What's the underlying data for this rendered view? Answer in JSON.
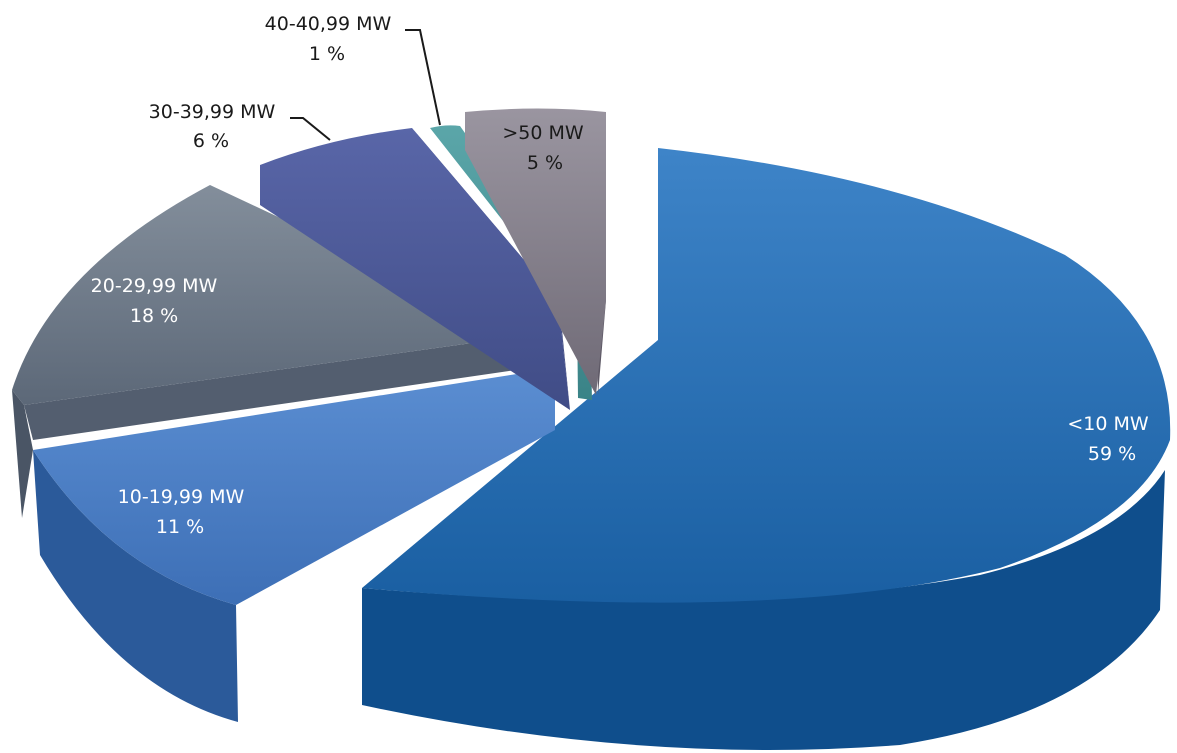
{
  "chart_data": {
    "type": "pie",
    "title": "",
    "slices": [
      {
        "label": "<10 MW",
        "value": 59,
        "percent_label": "59 %",
        "color": "#1F65A8"
      },
      {
        "label": "10-19,99 MW",
        "value": 11,
        "percent_label": "11 %",
        "color": "#3E72B8"
      },
      {
        "label": "20-29,99 MW",
        "value": 18,
        "percent_label": "18 %",
        "color": "#5D6B7E"
      },
      {
        "label": "30-39,99 MW",
        "value": 6,
        "percent_label": "6 %",
        "color": "#45528F"
      },
      {
        "label": "40-40,99 MW",
        "value": 1,
        "percent_label": "1 %",
        "color": "#3F8A8E"
      },
      {
        "label": ">50 MW",
        "value": 5,
        "percent_label": "5 %",
        "color": "#7A7480"
      }
    ],
    "legend": "none",
    "style": "3d-exploded"
  }
}
